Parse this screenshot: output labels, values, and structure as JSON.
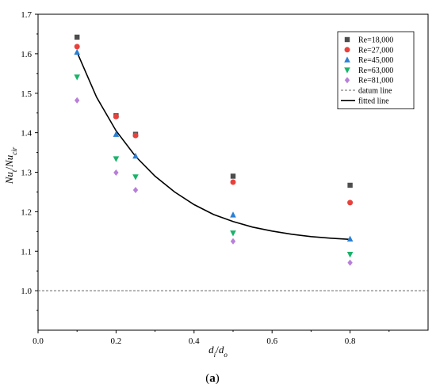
{
  "chart_data": {
    "type": "scatter",
    "xlim": [
      0.0,
      1.0
    ],
    "ylim": [
      0.9,
      1.7
    ],
    "x_ticks": [
      "0.0",
      "0.2",
      "0.4",
      "0.6",
      "0.8"
    ],
    "x_tick_values": [
      0.0,
      0.2,
      0.4,
      0.6,
      0.8
    ],
    "y_ticks": [
      "1.0",
      "1.1",
      "1.2",
      "1.3",
      "1.4",
      "1.5",
      "1.6",
      "1.7"
    ],
    "y_tick_values": [
      1.0,
      1.1,
      1.2,
      1.3,
      1.4,
      1.5,
      1.6,
      1.7
    ],
    "xlabel": {
      "main": "d",
      "sub1": "i",
      "slash": "/",
      "main2": "d",
      "sub2": "o"
    },
    "ylabel": {
      "main": "Nu",
      "sub1": "t",
      "slash": "/",
      "main2": "Nu",
      "sub2": "cir"
    },
    "panel_label": {
      "open": "(",
      "letter": "a",
      "close": ")"
    },
    "grid": false,
    "legend_position": "top-right",
    "x": [
      0.1,
      0.2,
      0.25,
      0.5,
      0.8
    ],
    "series": [
      {
        "name": "Re=18,000",
        "marker": "square",
        "color": "#4d4d4d",
        "values": [
          1.642,
          1.443,
          1.396,
          1.29,
          1.267
        ]
      },
      {
        "name": "Re=27,000",
        "marker": "circle",
        "color": "#e8413c",
        "values": [
          1.618,
          1.441,
          1.393,
          1.275,
          1.223
        ]
      },
      {
        "name": "Re=45,000",
        "marker": "triangle-up",
        "color": "#2a7fd4",
        "values": [
          1.604,
          1.396,
          1.341,
          1.192,
          1.131
        ]
      },
      {
        "name": "Re=63,000",
        "marker": "triangle-down",
        "color": "#1ab36a",
        "values": [
          1.541,
          1.334,
          1.288,
          1.146,
          1.092
        ]
      },
      {
        "name": "Re=81,000",
        "marker": "diamond",
        "color": "#b87fd9",
        "values": [
          1.482,
          1.299,
          1.255,
          1.125,
          1.071
        ]
      }
    ],
    "reference_lines": [
      {
        "name": "datum line",
        "style": "dashed",
        "color": "#666666",
        "y": 1.0
      }
    ],
    "fit_lines": [
      {
        "name": "fitted line",
        "style": "solid",
        "color": "#000000",
        "points": [
          [
            0.1,
            1.604
          ],
          [
            0.15,
            1.49
          ],
          [
            0.2,
            1.405
          ],
          [
            0.25,
            1.34
          ],
          [
            0.3,
            1.29
          ],
          [
            0.35,
            1.25
          ],
          [
            0.4,
            1.218
          ],
          [
            0.45,
            1.193
          ],
          [
            0.5,
            1.175
          ],
          [
            0.55,
            1.161
          ],
          [
            0.6,
            1.151
          ],
          [
            0.65,
            1.143
          ],
          [
            0.7,
            1.137
          ],
          [
            0.75,
            1.133
          ],
          [
            0.8,
            1.13
          ]
        ]
      }
    ]
  }
}
